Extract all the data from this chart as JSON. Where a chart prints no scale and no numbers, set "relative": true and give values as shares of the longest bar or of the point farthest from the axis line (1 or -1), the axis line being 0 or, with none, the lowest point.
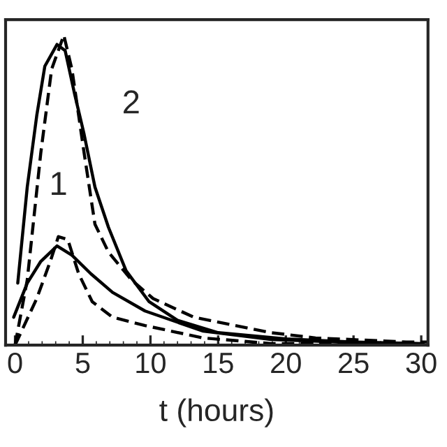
{
  "chart_data": {
    "type": "line",
    "relative": true,
    "xlabel": "t (hours)",
    "xlim": [
      -0.7,
      30.5
    ],
    "xticks": [
      0,
      5,
      10,
      15,
      20,
      25,
      30
    ],
    "grid": false,
    "legend": false,
    "marker": "none",
    "series": [
      {
        "color": "#000000",
        "line_style": "solid",
        "x": [
          0.2,
          0.9,
          1.6,
          2.2,
          3.1,
          3.7,
          4.4,
          5.1,
          5.9,
          6.9,
          8.2,
          9.9,
          12,
          15,
          20,
          25,
          30
        ],
        "values": [
          0.2,
          0.51,
          0.74,
          0.9,
          0.97,
          0.95,
          0.81,
          0.68,
          0.51,
          0.38,
          0.24,
          0.14,
          0.08,
          0.04,
          0.02,
          0.01,
          0.005
        ]
      },
      {
        "color": "#000000",
        "line_style": "dashed",
        "x": [
          0,
          0.9,
          1.9,
          2.7,
          3.6,
          4.2,
          5.1,
          5.9,
          6.9,
          8.6,
          10.2,
          13.2,
          18.9,
          22.2,
          28.9,
          30.5
        ],
        "values": [
          0,
          0.21,
          0.62,
          0.89,
          1.0,
          0.89,
          0.62,
          0.39,
          0.3,
          0.21,
          0.15,
          0.09,
          0.04,
          0.023,
          0.01,
          0.01
        ]
      },
      {
        "color": "#000000",
        "line_style": "solid",
        "x": [
          -0.1,
          0.9,
          1.9,
          3.1,
          4.2,
          5.6,
          7.2,
          9.6,
          13.9,
          18.9,
          25,
          30
        ],
        "values": [
          0.09,
          0.2,
          0.27,
          0.32,
          0.29,
          0.23,
          0.17,
          0.11,
          0.045,
          0.018,
          0.008,
          0.004
        ]
      },
      {
        "color": "#000000",
        "line_style": "dashed",
        "x": [
          0,
          1.6,
          2.6,
          3.2,
          3.9,
          4.7,
          5.7,
          7.2,
          9.6,
          13.9,
          18.9,
          30.5
        ],
        "values": [
          0,
          0.15,
          0.27,
          0.35,
          0.34,
          0.23,
          0.14,
          0.09,
          0.063,
          0.023,
          0.005,
          0.003
        ]
      }
    ],
    "annotations": [
      "1",
      "2"
    ]
  }
}
